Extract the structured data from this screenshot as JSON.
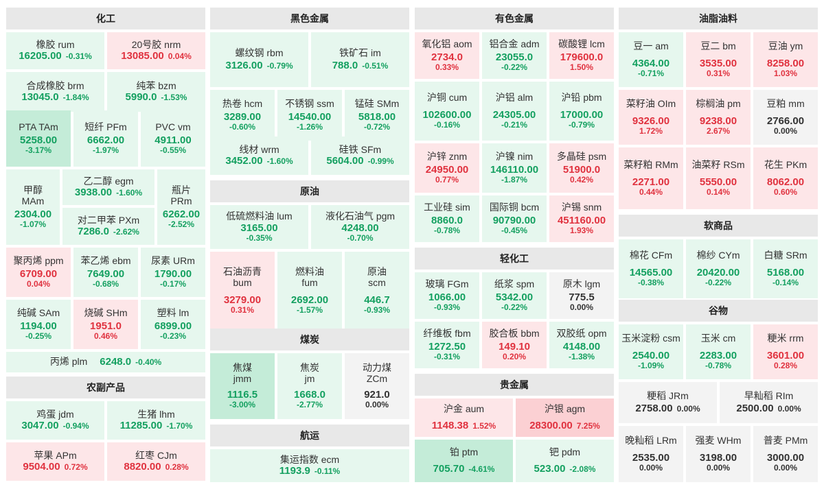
{
  "sections": {
    "chemical": "化工",
    "ferrous": "黑色金属",
    "nonferrous": "有色金属",
    "oils": "油脂油料",
    "crude": "原油",
    "soft": "软商品",
    "light": "轻化工",
    "grains": "谷物",
    "agri": "农副产品",
    "coal": "煤炭",
    "precious": "贵金属",
    "shipping": "航运"
  },
  "colors": {
    "up": "#e0323f",
    "down": "#14a060",
    "flat": "#333333",
    "up_bg": "#fde6e8",
    "down_bg": "#e6f7ee",
    "flat_bg": "#f3f3f3",
    "header_bg": "#e8e8e8"
  },
  "tiles": {
    "rum": {
      "name": "橡胶  rum",
      "price": "16205.00",
      "change": "-0.31%",
      "dir": "down"
    },
    "nrm": {
      "name": "20号胶  nrm",
      "price": "13085.00",
      "change": "0.04%",
      "dir": "up"
    },
    "brm": {
      "name": "合成橡胶  brm",
      "price": "13045.0",
      "change": "-1.84%",
      "dir": "down"
    },
    "bzm": {
      "name": "纯苯  bzm",
      "price": "5990.0",
      "change": "-1.53%",
      "dir": "down"
    },
    "TAm": {
      "name": "PTA  TAm",
      "price": "5258.00",
      "change": "-3.17%",
      "dir": "down"
    },
    "PFm": {
      "name": "短纤  PFm",
      "price": "6662.00",
      "change": "-1.97%",
      "dir": "down"
    },
    "vm": {
      "name": "PVC  vm",
      "price": "4911.00",
      "change": "-0.55%",
      "dir": "down"
    },
    "MAm": {
      "name1": "甲醇",
      "name2": "MAm",
      "price": "2304.00",
      "change": "-1.07%",
      "dir": "down"
    },
    "egm": {
      "name": "乙二醇  egm",
      "price": "3938.00",
      "change": "-1.60%",
      "dir": "down"
    },
    "PXm": {
      "name": "对二甲苯  PXm",
      "price": "7286.0",
      "change": "-2.62%",
      "dir": "down"
    },
    "PRm": {
      "name1": "瓶片",
      "name2": "PRm",
      "price": "6262.00",
      "change": "-2.52%",
      "dir": "down"
    },
    "ppm": {
      "name": "聚丙烯  ppm",
      "price": "6709.00",
      "change": "0.04%",
      "dir": "up"
    },
    "ebm": {
      "name": "苯乙烯  ebm",
      "price": "7649.00",
      "change": "-0.68%",
      "dir": "down"
    },
    "URm": {
      "name": "尿素  URm",
      "price": "1790.00",
      "change": "-0.17%",
      "dir": "down"
    },
    "SAm": {
      "name": "纯碱  SAm",
      "price": "1194.00",
      "change": "-0.25%",
      "dir": "down"
    },
    "SHm": {
      "name": "烧碱  SHm",
      "price": "1951.0",
      "change": "0.46%",
      "dir": "up"
    },
    "lm": {
      "name": "塑料  lm",
      "price": "6899.00",
      "change": "-0.23%",
      "dir": "down"
    },
    "plm": {
      "name": "丙烯  plm",
      "price": "6248.0",
      "change": "-0.40%",
      "dir": "down"
    },
    "jdm": {
      "name": "鸡蛋  jdm",
      "price": "3047.00",
      "change": "-0.94%",
      "dir": "down"
    },
    "lhm": {
      "name": "生猪  lhm",
      "price": "11285.00",
      "change": "-1.70%",
      "dir": "down"
    },
    "APm": {
      "name": "苹果  APm",
      "price": "9504.00",
      "change": "0.72%",
      "dir": "up"
    },
    "CJm": {
      "name": "红枣  CJm",
      "price": "8820.00",
      "change": "0.28%",
      "dir": "up"
    },
    "rbm": {
      "name": "螺纹钢  rbm",
      "price": "3126.00",
      "change": "-0.79%",
      "dir": "down"
    },
    "im": {
      "name": "铁矿石  im",
      "price": "788.0",
      "change": "-0.51%",
      "dir": "down"
    },
    "hcm": {
      "name": "热卷  hcm",
      "price": "3289.00",
      "change": "-0.60%",
      "dir": "down"
    },
    "ssm": {
      "name": "不锈钢  ssm",
      "price": "14540.00",
      "change": "-1.26%",
      "dir": "down"
    },
    "SMm": {
      "name": "锰硅  SMm",
      "price": "5818.00",
      "change": "-0.72%",
      "dir": "down"
    },
    "wrm": {
      "name": "线材  wrm",
      "price": "3452.00",
      "change": "-1.60%",
      "dir": "down"
    },
    "SFm": {
      "name": "硅铁  SFm",
      "price": "5604.00",
      "change": "-0.99%",
      "dir": "down"
    },
    "lum": {
      "name": "低硫燃料油  lum",
      "price": "3165.00",
      "change": "-0.35%",
      "dir": "down"
    },
    "pgm": {
      "name": "液化石油气  pgm",
      "price": "4248.00",
      "change": "-0.70%",
      "dir": "down"
    },
    "bum": {
      "name1": "石油沥青",
      "name2": "bum",
      "price": "3279.00",
      "change": "0.31%",
      "dir": "up"
    },
    "fum": {
      "name1": "燃料油",
      "name2": "fum",
      "price": "2692.00",
      "change": "-1.57%",
      "dir": "down"
    },
    "scm": {
      "name1": "原油",
      "name2": "scm",
      "price": "446.7",
      "change": "-0.93%",
      "dir": "down"
    },
    "jmm": {
      "name1": "焦煤",
      "name2": "jmm",
      "price": "1116.5",
      "change": "-3.00%",
      "dir": "down"
    },
    "jm": {
      "name1": "焦炭",
      "name2": "jm",
      "price": "1668.0",
      "change": "-2.77%",
      "dir": "down"
    },
    "ZCm": {
      "name1": "动力煤",
      "name2": "ZCm",
      "price": "921.0",
      "change": "0.00%",
      "dir": "flat"
    },
    "ecm": {
      "name": "集运指数  ecm",
      "price": "1193.9",
      "change": "-0.11%",
      "dir": "down"
    },
    "aom": {
      "name": "氧化铝  aom",
      "price": "2734.0",
      "change": "0.33%",
      "dir": "up"
    },
    "adm": {
      "name": "铝合金  adm",
      "price": "23055.0",
      "change": "-0.22%",
      "dir": "down"
    },
    "lcm": {
      "name": "碳酸锂  lcm",
      "price": "179600.0",
      "change": "1.50%",
      "dir": "up"
    },
    "cum": {
      "name": "沪铜  cum",
      "price": "102600.00",
      "change": "-0.16%",
      "dir": "down"
    },
    "alm": {
      "name": "沪铝  alm",
      "price": "24305.00",
      "change": "-0.21%",
      "dir": "down"
    },
    "pbm": {
      "name": "沪铅  pbm",
      "price": "17000.00",
      "change": "-0.79%",
      "dir": "down"
    },
    "znm": {
      "name": "沪锌  znm",
      "price": "24950.00",
      "change": "0.77%",
      "dir": "up"
    },
    "nim": {
      "name": "沪镍  nim",
      "price": "146110.00",
      "change": "-1.87%",
      "dir": "down"
    },
    "psm": {
      "name": "多晶硅  psm",
      "price": "51900.0",
      "change": "0.42%",
      "dir": "up"
    },
    "sim": {
      "name": "工业硅  sim",
      "price": "8860.0",
      "change": "-0.78%",
      "dir": "down"
    },
    "bcm": {
      "name": "国际铜  bcm",
      "price": "90790.00",
      "change": "-0.45%",
      "dir": "down"
    },
    "snm": {
      "name": "沪锡  snm",
      "price": "451160.00",
      "change": "1.93%",
      "dir": "up"
    },
    "FGm": {
      "name": "玻璃  FGm",
      "price": "1066.00",
      "change": "-0.93%",
      "dir": "down"
    },
    "spm": {
      "name": "纸浆  spm",
      "price": "5342.00",
      "change": "-0.22%",
      "dir": "down"
    },
    "lgm": {
      "name": "原木  lgm",
      "price": "775.5",
      "change": "0.00%",
      "dir": "flat"
    },
    "fbm": {
      "name": "纤维板  fbm",
      "price": "1272.50",
      "change": "-0.31%",
      "dir": "down"
    },
    "bbm": {
      "name": "胶合板  bbm",
      "price": "149.10",
      "change": "0.20%",
      "dir": "up"
    },
    "opm": {
      "name": "双胶纸  opm",
      "price": "4148.00",
      "change": "-1.38%",
      "dir": "down"
    },
    "aum": {
      "name": "沪金 aum",
      "price": "1148.38",
      "change": "1.52%",
      "dir": "up"
    },
    "agm": {
      "name": "沪银 agm",
      "price": "28300.00",
      "change": "7.25%",
      "dir": "up"
    },
    "ptm": {
      "name": "铂 ptm",
      "price": "705.70",
      "change": "-4.61%",
      "dir": "down"
    },
    "pdm": {
      "name": "钯 pdm",
      "price": "523.00",
      "change": "-2.08%",
      "dir": "down"
    },
    "am": {
      "name": "豆一  am",
      "price": "4364.00",
      "change": "-0.71%",
      "dir": "down"
    },
    "bm": {
      "name": "豆二  bm",
      "price": "3535.00",
      "change": "0.31%",
      "dir": "up"
    },
    "ym": {
      "name": "豆油  ym",
      "price": "8258.00",
      "change": "1.03%",
      "dir": "up"
    },
    "OIm": {
      "name": "菜籽油  OIm",
      "price": "9326.00",
      "change": "1.72%",
      "dir": "up"
    },
    "pm": {
      "name": "棕榈油  pm",
      "price": "9238.00",
      "change": "2.67%",
      "dir": "up"
    },
    "mm": {
      "name": "豆粕  mm",
      "price": "2766.00",
      "change": "0.00%",
      "dir": "flat"
    },
    "RMm": {
      "name": "菜籽粕  RMm",
      "price": "2271.00",
      "change": "0.44%",
      "dir": "up"
    },
    "RSm": {
      "name": "油菜籽  RSm",
      "price": "5550.00",
      "change": "0.14%",
      "dir": "up"
    },
    "PKm": {
      "name": "花生  PKm",
      "price": "8062.00",
      "change": "0.60%",
      "dir": "up"
    },
    "CFm": {
      "name": "棉花  CFm",
      "price": "14565.00",
      "change": "-0.38%",
      "dir": "down"
    },
    "CYm": {
      "name": "棉纱  CYm",
      "price": "20420.00",
      "change": "-0.22%",
      "dir": "down"
    },
    "SRm": {
      "name": "白糖  SRm",
      "price": "5168.00",
      "change": "-0.14%",
      "dir": "down"
    },
    "csm": {
      "name": "玉米淀粉  csm",
      "price": "2540.00",
      "change": "-1.09%",
      "dir": "down"
    },
    "cm": {
      "name": "玉米  cm",
      "price": "2283.00",
      "change": "-0.78%",
      "dir": "down"
    },
    "rrm": {
      "name": "粳米  rrm",
      "price": "3601.00",
      "change": "0.28%",
      "dir": "up"
    },
    "JRm": {
      "name": "粳稻  JRm",
      "price": "2758.00",
      "change": "0.00%",
      "dir": "flat"
    },
    "RIm": {
      "name": "早籼稻  RIm",
      "price": "2500.00",
      "change": "0.00%",
      "dir": "flat"
    },
    "LRm": {
      "name": "晚籼稻  LRm",
      "price": "2535.00",
      "change": "0.00%",
      "dir": "flat"
    },
    "WHm": {
      "name": "强麦  WHm",
      "price": "3198.00",
      "change": "0.00%",
      "dir": "flat"
    },
    "PMm": {
      "name": "普麦  PMm",
      "price": "3000.00",
      "change": "0.00%",
      "dir": "flat"
    }
  }
}
